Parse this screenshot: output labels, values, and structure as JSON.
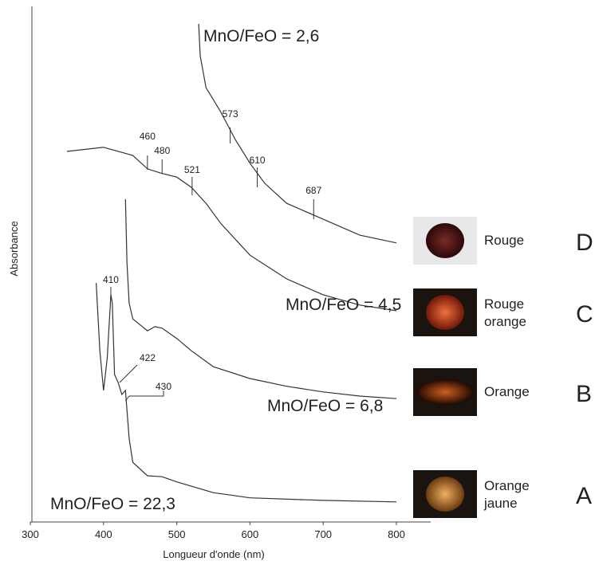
{
  "chart_data": {
    "type": "line",
    "x_label": "Longueur d'onde (nm)",
    "y_label": "Absorbance",
    "xlim": [
      300,
      800
    ],
    "xticks": [
      300,
      400,
      500,
      600,
      700,
      800
    ],
    "ylim": [
      0,
      100
    ],
    "series": [
      {
        "name": "MnO/FeO = 2,6",
        "color": "#333333",
        "x": [
          530,
          532,
          540,
          560,
          580,
          600,
          620,
          650,
          700,
          750,
          800
        ],
        "values": [
          96.9,
          90.7,
          84.5,
          79.8,
          74.4,
          69.8,
          65.9,
          62,
          58.9,
          55.8,
          54.3
        ]
      },
      {
        "name": "MnO/FeO = 4,5",
        "color": "#333333",
        "x": [
          350,
          400,
          440,
          460,
          480,
          500,
          520,
          540,
          560,
          600,
          650,
          700,
          750,
          800
        ],
        "values": [
          72.1,
          72.9,
          71.3,
          68.7,
          67.8,
          67.1,
          65.1,
          62,
          58.1,
          51.9,
          47.3,
          44.2,
          42.2,
          41.1
        ]
      },
      {
        "name": "MnO/FeO = 6,8",
        "color": "#333333",
        "x": [
          430,
          432,
          435,
          440,
          460,
          470,
          480,
          500,
          520,
          550,
          600,
          650,
          700,
          750,
          800
        ],
        "values": [
          62.8,
          50.4,
          42.6,
          39.5,
          37.2,
          38,
          37.7,
          35.7,
          33.3,
          30.2,
          27.9,
          26.4,
          25.3,
          24.5,
          24
        ]
      },
      {
        "name": "MnO/FeO = 22,3",
        "color": "#333333",
        "x": [
          390,
          395,
          400,
          405,
          410,
          412,
          415,
          420,
          425,
          430,
          435,
          440,
          460,
          480,
          500,
          550,
          600,
          700,
          800
        ],
        "values": [
          46.5,
          33.3,
          25.6,
          31.8,
          44.2,
          42.6,
          28.7,
          27.1,
          24.8,
          25.6,
          16.3,
          11.6,
          9,
          8.8,
          7.8,
          5.7,
          4.7,
          4.2,
          3.9
        ]
      }
    ],
    "peaks": [
      460,
      480,
      521,
      573,
      610,
      687,
      410,
      422,
      430
    ],
    "samples": [
      {
        "letter": "D",
        "label": [
          "Rouge"
        ]
      },
      {
        "letter": "C",
        "label": [
          "Rouge",
          "orange"
        ]
      },
      {
        "letter": "B",
        "label": [
          "Orange"
        ]
      },
      {
        "letter": "A",
        "label": [
          "Orange",
          "jaune"
        ]
      }
    ]
  }
}
